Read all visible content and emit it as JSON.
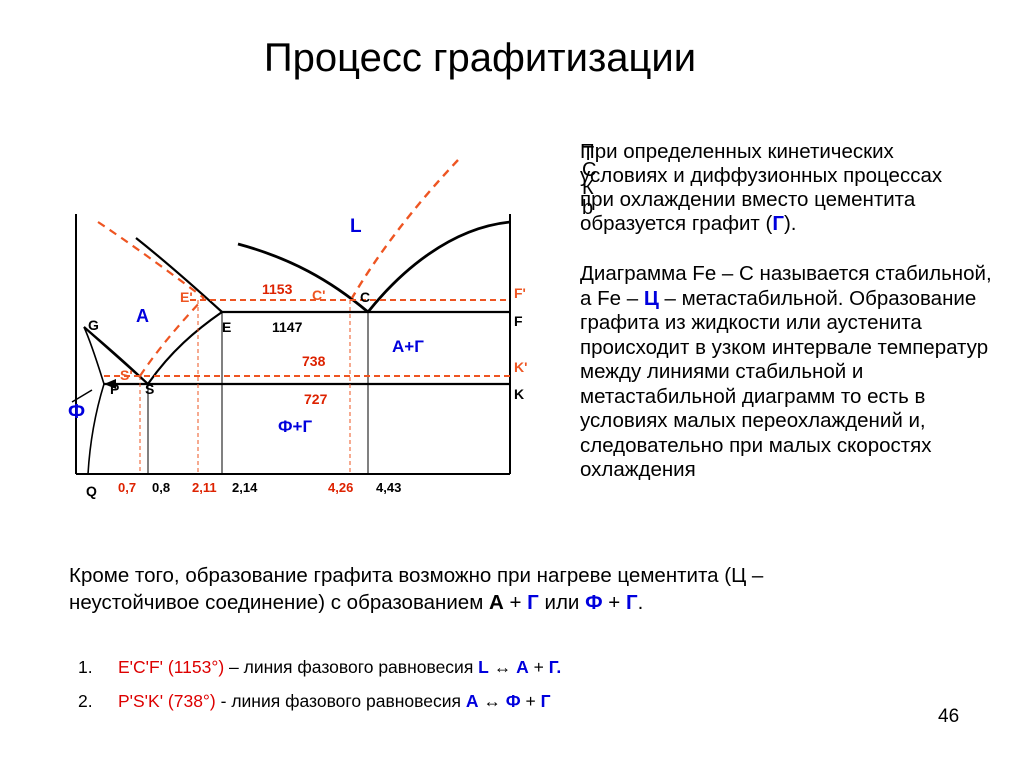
{
  "title": "Процесс графитизации",
  "diagram": {
    "points": {
      "G": "G",
      "P": "P",
      "S": "S",
      "Q": "Q",
      "E": "E",
      "C": "C",
      "F": "F",
      "K": "K",
      "E_prime": "E'",
      "C_prime": "C'",
      "F_prime": "F'",
      "S_prime": "S'",
      "K_prime": "K'"
    },
    "temps": {
      "t1153": "1153",
      "t1147": "1147",
      "t738": "738",
      "t727": "727"
    },
    "phases": {
      "L": "L",
      "A": "A",
      "F": "Ф",
      "AG": "А+Г",
      "FG": "Ф+Г"
    },
    "x_labels": {
      "c07": "0,7",
      "c08": "0,8",
      "c211": "2,11",
      "c214": "2,14",
      "c426": "4,26",
      "c443": "4,43"
    }
  },
  "ghost_text": [
    "Т",
    "С",
    "К",
    "b"
  ],
  "paragraph1": [
    "При определенных кинетических",
    "условиях и диффузионных процессах",
    "при охлаждении вместо цементита",
    "образуется графит ("
  ],
  "paragraph1_G": "Г",
  "paragraph1_end": ").",
  "paragraph2": {
    "p1": "Диаграмма Fe – C называется стабильной, а Fe – ",
    "C": "Ц",
    "p2": " – метастабильной. Образование графита из жидкости или аустенита происходит в узком интервале температур между линиями стабильной и метастабильной диаграмм то есть в условиях малых переохлаждений и, следовательно при малых скоростях охлаждения"
  },
  "bottom": {
    "text": "Кроме того, образование графита возможно при нагреве цементита (Ц – неустойчивое соединение) с образованием ",
    "A": "А",
    "plus1": " + ",
    "G1": "Г",
    "or": " или ",
    "F": "Ф",
    "plus2": " + ",
    "G2": "Г",
    "end": "."
  },
  "list": [
    {
      "num": "1.",
      "red": "E'C'F' (1153°)",
      "text": " – линия  фазового равновесия  ",
      "b1": "L",
      "arrow": " ↔ ",
      "b2": "А",
      "plus": " + ",
      "b3": "Г."
    },
    {
      "num": "2.",
      "red": "P'S'K' (738°)",
      "text": "  - линия  фазового равновесия ",
      "b1": "А",
      "arrow": " ↔ ",
      "b2": "Ф",
      "plus": " + ",
      "b3": "Г"
    }
  ],
  "page_number": "46",
  "colors": {
    "stable_lines": "#ee5522",
    "labels_blue": "#0000dd",
    "labels_red": "#dd2200"
  }
}
